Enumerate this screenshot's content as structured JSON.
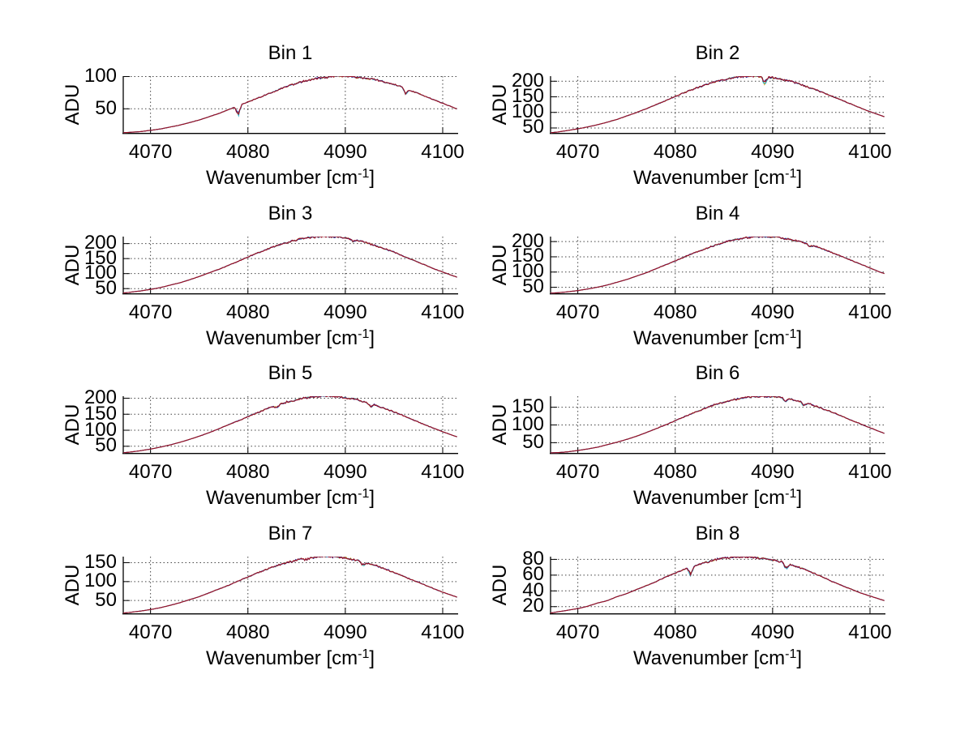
{
  "figure": {
    "background": "#ffffff",
    "ylabel": "ADU",
    "xlabel_prefix": "Wavenumber [cm",
    "xlabel_sup": "-1",
    "xlabel_suffix": "]",
    "x_ticks": [
      "4070",
      "4080",
      "4090",
      "4100"
    ],
    "axis_color": "#000000",
    "grid_color": "#444444",
    "grid_style": "dotted",
    "line_colors": [
      "#c8a020",
      "#30b8cc",
      "#232394",
      "#9c1228"
    ],
    "legend": "none"
  },
  "chart_data": [
    {
      "type": "line",
      "title": "Bin 1",
      "xlabel": "Wavenumber [cm^-1]",
      "ylabel": "ADU",
      "x_start": 4067,
      "x_step": 1,
      "x_tick_values": [
        4070,
        4080,
        4090,
        4100
      ],
      "xlim": [
        4067.2,
        4101.5
      ],
      "ylim": "tight",
      "y_ticks": [
        50,
        100
      ],
      "values": [
        12,
        13,
        14,
        16,
        18,
        21,
        24,
        28,
        32,
        37,
        42,
        48,
        54,
        60,
        66,
        72,
        78,
        84,
        89,
        93,
        96,
        98,
        100,
        100,
        99,
        97,
        95,
        91,
        87,
        82,
        76,
        70,
        64,
        58,
        52,
        46,
        41
      ],
      "spikes": [
        [
          4079.0,
          13
        ],
        [
          4096.2,
          7
        ]
      ]
    },
    {
      "type": "line",
      "title": "Bin 2",
      "xlabel": "Wavenumber [cm^-1]",
      "ylabel": "ADU",
      "x_start": 4067,
      "x_step": 1,
      "x_tick_values": [
        4070,
        4080,
        4090,
        4100
      ],
      "xlim": [
        4067.2,
        4101.5
      ],
      "ylim": "tight",
      "y_ticks": [
        50,
        100,
        150,
        200
      ],
      "values": [
        33,
        36,
        41,
        46,
        52,
        59,
        67,
        76,
        87,
        98,
        110,
        123,
        136,
        150,
        163,
        175,
        186,
        196,
        204,
        210,
        214,
        215,
        214,
        210,
        205,
        197,
        187,
        176,
        165,
        152,
        139,
        126,
        113,
        101,
        90,
        79,
        70
      ],
      "spikes": [
        [
          4089.2,
          20
        ]
      ]
    },
    {
      "type": "line",
      "title": "Bin 3",
      "xlabel": "Wavenumber [cm^-1]",
      "ylabel": "ADU",
      "x_start": 4067,
      "x_step": 1,
      "x_tick_values": [
        4070,
        4080,
        4090,
        4100
      ],
      "xlim": [
        4067.2,
        4101.5
      ],
      "ylim": "tight",
      "y_ticks": [
        50,
        100,
        150,
        200
      ],
      "values": [
        33,
        37,
        41,
        46,
        52,
        60,
        68,
        78,
        89,
        101,
        113,
        126,
        140,
        154,
        168,
        180,
        192,
        202,
        211,
        217,
        221,
        222,
        221,
        217,
        211,
        203,
        193,
        182,
        170,
        156,
        143,
        130,
        116,
        104,
        92,
        81,
        71
      ],
      "spikes": [
        [
          4090.8,
          7
        ]
      ]
    },
    {
      "type": "line",
      "title": "Bin 4",
      "xlabel": "Wavenumber [cm^-1]",
      "ylabel": "ADU",
      "x_start": 4067,
      "x_step": 1,
      "x_tick_values": [
        4070,
        4080,
        4090,
        4100
      ],
      "xlim": [
        4067.2,
        4101.5
      ],
      "ylim": "tight",
      "y_ticks": [
        50,
        100,
        150,
        200
      ],
      "values": [
        29,
        31,
        34,
        38,
        43,
        49,
        56,
        65,
        74,
        85,
        96,
        109,
        122,
        135,
        149,
        162,
        174,
        186,
        196,
        204,
        210,
        214,
        215,
        214,
        210,
        204,
        197,
        187,
        176,
        164,
        151,
        138,
        125,
        112,
        99,
        88,
        77
      ],
      "spikes": [
        [
          4093.8,
          7
        ]
      ]
    },
    {
      "type": "line",
      "title": "Bin 5",
      "xlabel": "Wavenumber [cm^-1]",
      "ylabel": "ADU",
      "x_start": 4067,
      "x_step": 1,
      "x_tick_values": [
        4070,
        4080,
        4090,
        4100
      ],
      "xlim": [
        4067.2,
        4101.5
      ],
      "ylim": "tight",
      "y_ticks": [
        50,
        100,
        150,
        200
      ],
      "values": [
        28,
        31,
        35,
        40,
        46,
        53,
        61,
        70,
        80,
        91,
        103,
        116,
        128,
        141,
        154,
        166,
        177,
        187,
        194,
        200,
        204,
        205,
        204,
        200,
        195,
        187,
        178,
        167,
        156,
        144,
        131,
        118,
        106,
        94,
        83,
        73,
        64
      ],
      "spikes": [
        [
          4083.0,
          7
        ],
        [
          4092.6,
          9
        ]
      ]
    },
    {
      "type": "line",
      "title": "Bin 6",
      "xlabel": "Wavenumber [cm^-1]",
      "ylabel": "ADU",
      "x_start": 4067,
      "x_step": 1,
      "x_tick_values": [
        4070,
        4080,
        4090,
        4100
      ],
      "xlim": [
        4067.2,
        4101.5
      ],
      "ylim": "tight",
      "y_ticks": [
        50,
        100,
        150
      ],
      "values": [
        20,
        21,
        23,
        27,
        31,
        36,
        43,
        50,
        58,
        67,
        77,
        88,
        99,
        111,
        123,
        134,
        145,
        155,
        163,
        170,
        176,
        179,
        180,
        179,
        176,
        171,
        164,
        156,
        146,
        136,
        125,
        113,
        102,
        91,
        80,
        70,
        61
      ],
      "spikes": [
        [
          4091.3,
          9
        ],
        [
          4093.2,
          8
        ]
      ]
    },
    {
      "type": "line",
      "title": "Bin 7",
      "xlabel": "Wavenumber [cm^-1]",
      "ylabel": "ADU",
      "x_start": 4067,
      "x_step": 1,
      "x_tick_values": [
        4070,
        4080,
        4090,
        4100
      ],
      "xlim": [
        4067.2,
        4101.5
      ],
      "ylim": "tight",
      "y_ticks": [
        50,
        100,
        150
      ],
      "values": [
        15,
        18,
        21,
        25,
        30,
        36,
        43,
        51,
        59,
        69,
        79,
        89,
        100,
        111,
        122,
        132,
        141,
        149,
        156,
        161,
        164,
        165,
        164,
        161,
        156,
        150,
        142,
        133,
        123,
        113,
        102,
        92,
        81,
        71,
        62,
        53,
        45
      ],
      "spikes": [
        [
          4086.0,
          5
        ],
        [
          4091.8,
          9
        ]
      ]
    },
    {
      "type": "line",
      "title": "Bin 8",
      "xlabel": "Wavenumber [cm^-1]",
      "ylabel": "ADU",
      "x_start": 4067,
      "x_step": 1,
      "x_tick_values": [
        4070,
        4080,
        4090,
        4100
      ],
      "xlim": [
        4067.2,
        4101.5
      ],
      "ylim": "tight",
      "y_ticks": [
        20,
        40,
        60,
        80
      ],
      "values": [
        11,
        13,
        15,
        17,
        20,
        24,
        27,
        32,
        36,
        41,
        46,
        51,
        57,
        62,
        67,
        71,
        75,
        79,
        81,
        82,
        83,
        82,
        81,
        79,
        76,
        72,
        68,
        63,
        58,
        52,
        47,
        42,
        37,
        33,
        29,
        25,
        21
      ],
      "spikes": [
        [
          4081.6,
          8
        ],
        [
          4091.4,
          6
        ]
      ]
    }
  ]
}
